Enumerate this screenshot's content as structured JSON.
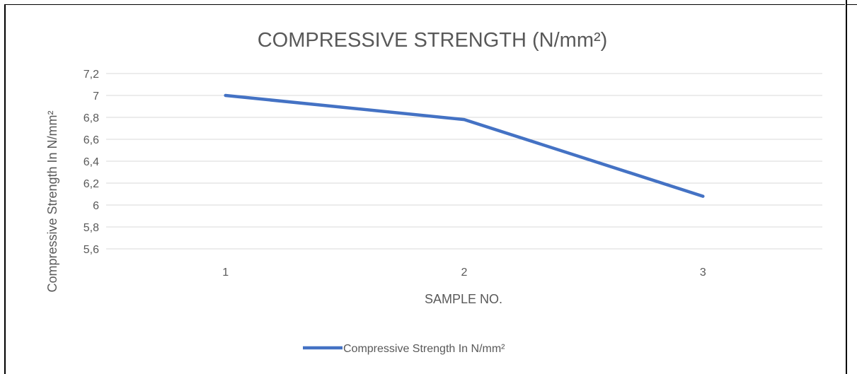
{
  "chart_data": {
    "type": "line",
    "title": "COMPRESSIVE STRENGTH (N/mm²)",
    "xlabel": "SAMPLE NO.",
    "ylabel": "Compressive Strength In N/mm²",
    "categories": [
      "1",
      "2",
      "3"
    ],
    "series": [
      {
        "name": "Compressive Strength In N/mm²",
        "values": [
          7.0,
          6.78,
          6.08
        ],
        "color": "#4472C4"
      }
    ],
    "ylim": [
      5.6,
      7.2
    ],
    "yticks": [
      "5,6",
      "5,8",
      "6",
      "6,2",
      "6,4",
      "6,6",
      "6,8",
      "7",
      "7,2"
    ],
    "ytick_values": [
      5.6,
      5.8,
      6.0,
      6.2,
      6.4,
      6.6,
      6.8,
      7.0,
      7.2
    ],
    "grid": true,
    "legend_position": "bottom",
    "colors": {
      "gridline": "#d9d9d9",
      "text": "#595959",
      "line": "#4472C4"
    }
  }
}
